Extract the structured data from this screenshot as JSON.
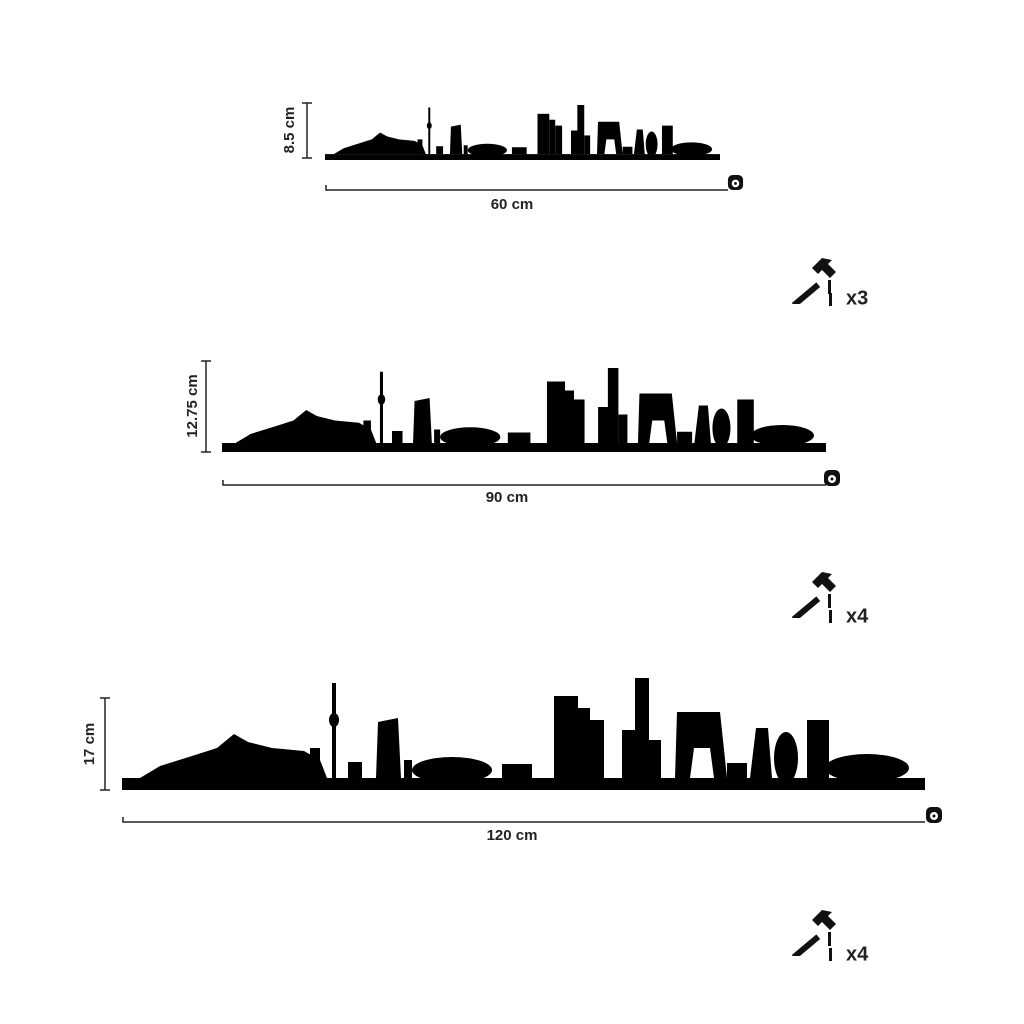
{
  "items": [
    {
      "height": "8.5 cm",
      "width": "60 cm",
      "nails": "x3"
    },
    {
      "height": "12.75 cm",
      "width": "90 cm",
      "nails": "x4"
    },
    {
      "height": "17 cm",
      "width": "120 cm",
      "nails": "x4"
    }
  ]
}
